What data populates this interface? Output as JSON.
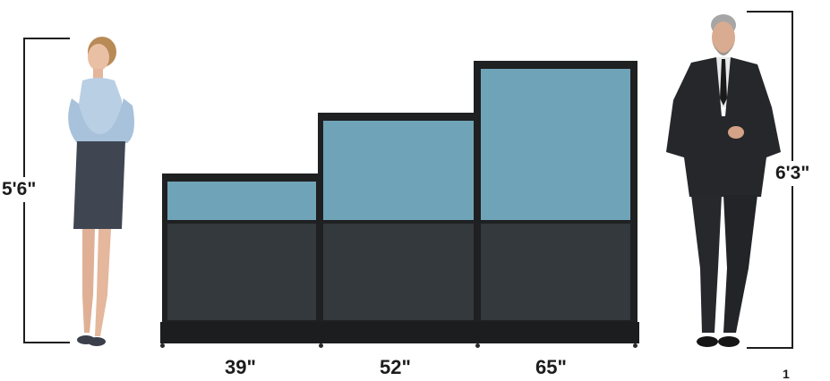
{
  "figure": {
    "woman_height": "5'6\"",
    "man_height": "6'3\"",
    "panel_widths": [
      "39\"",
      "52\"",
      "65\""
    ],
    "page_number": "1"
  },
  "colors": {
    "glass": "#6fa4b8",
    "fabric": "#33393d",
    "frame": "#1f2022",
    "text": "#1c1c1c"
  }
}
